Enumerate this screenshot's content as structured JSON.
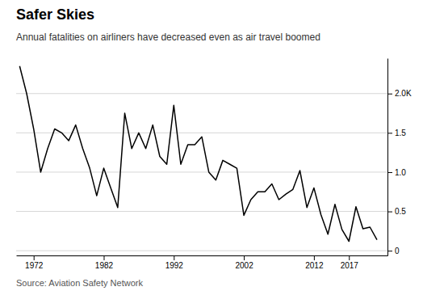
{
  "chart_data": {
    "type": "line",
    "title": "Safer Skies",
    "subtitle": "Annual fatalities on airliners have decreased even as air travel boomed",
    "source": "Source: Aviation Safety Network",
    "color": "#000000",
    "grid": true,
    "x": [
      1970,
      1971,
      1972,
      1973,
      1974,
      1975,
      1976,
      1977,
      1978,
      1979,
      1980,
      1981,
      1982,
      1983,
      1984,
      1985,
      1986,
      1987,
      1988,
      1989,
      1990,
      1991,
      1992,
      1993,
      1994,
      1995,
      1996,
      1997,
      1998,
      1999,
      2000,
      2001,
      2002,
      2003,
      2004,
      2005,
      2006,
      2007,
      2008,
      2009,
      2010,
      2011,
      2012,
      2013,
      2014,
      2015,
      2016,
      2017,
      2018,
      2019,
      2020,
      2021
    ],
    "values": [
      2.35,
      2.0,
      1.55,
      1.0,
      1.3,
      1.55,
      1.5,
      1.4,
      1.6,
      1.3,
      1.05,
      0.7,
      1.05,
      0.8,
      0.55,
      1.75,
      1.3,
      1.5,
      1.3,
      1.6,
      1.2,
      1.1,
      1.85,
      1.1,
      1.35,
      1.35,
      1.45,
      1.0,
      0.9,
      1.15,
      1.1,
      1.05,
      0.45,
      0.65,
      0.75,
      0.75,
      0.85,
      0.65,
      0.72,
      0.78,
      1.02,
      0.55,
      0.8,
      0.46,
      0.21,
      0.59,
      0.27,
      0.12,
      0.56,
      0.28,
      0.3,
      0.14
    ],
    "xlim": [
      1969.5,
      2022.5
    ],
    "xticks": [
      1972,
      1982,
      1992,
      2002,
      2012,
      2017
    ],
    "ylim": [
      -0.06,
      2.45
    ],
    "yticks": [
      0,
      0.5,
      {
        "value": 1.0,
        "label": "1.0"
      },
      1.5,
      {
        "value": 2.0,
        "label": "2.0K"
      }
    ]
  }
}
